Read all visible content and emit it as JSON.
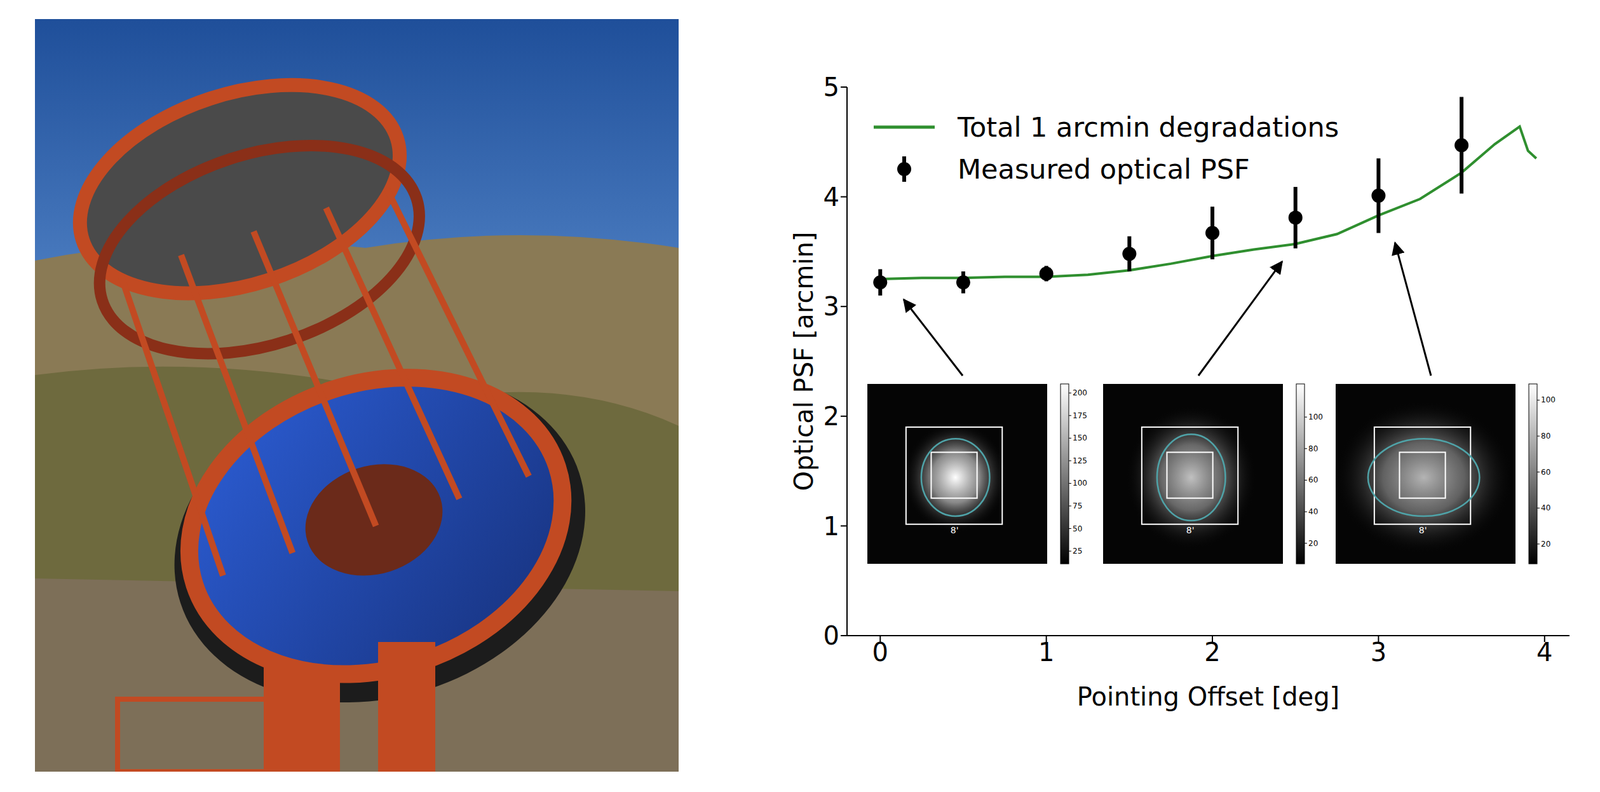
{
  "chart_data": {
    "type": "scatter",
    "x_label": "Pointing Offset [deg]",
    "y_label": "Optical PSF [arcmin]",
    "xlim": [
      -0.2,
      4.15
    ],
    "xticks": [
      0,
      1,
      2,
      3,
      4
    ],
    "ylim": [
      0,
      5
    ],
    "yticks": [
      0,
      1,
      2,
      3,
      4,
      5
    ],
    "grid": false,
    "legend": "upper left",
    "series": [
      {
        "name": "Total 1 arcmin degradations",
        "type": "line",
        "color": "#2f8f2f",
        "line_style": "solid",
        "x": [
          0,
          0.25,
          0.5,
          0.75,
          1,
          1.25,
          1.5,
          1.75,
          2,
          2.25,
          2.5,
          2.75,
          3,
          3.25,
          3.5,
          3.7,
          3.85,
          3.9,
          3.95
        ],
        "values": [
          3.25,
          3.26,
          3.26,
          3.27,
          3.27,
          3.29,
          3.33,
          3.39,
          3.46,
          3.52,
          3.57,
          3.66,
          3.83,
          3.98,
          4.22,
          4.48,
          4.64,
          4.42,
          4.35
        ]
      },
      {
        "name": "Measured optical PSF",
        "type": "scatter",
        "color": "#000000",
        "marker": "circle",
        "x": [
          0,
          0.5,
          1,
          1.5,
          2,
          2.5,
          3,
          3.5
        ],
        "values": [
          3.22,
          3.22,
          3.3,
          3.48,
          3.67,
          3.81,
          4.01,
          4.47
        ],
        "errors": [
          0.12,
          0.1,
          0.07,
          0.16,
          0.24,
          0.28,
          0.34,
          0.44
        ]
      }
    ],
    "insets": [
      {
        "pointing_offset": 0,
        "scale_label": "8'",
        "colorbar_range": [
          11,
          210
        ],
        "colorbar_ticks": [
          200,
          175,
          150,
          125,
          100,
          75,
          50,
          25
        ]
      },
      {
        "pointing_offset": 2.5,
        "scale_label": "8'",
        "colorbar_range": [
          7,
          121
        ],
        "colorbar_ticks": [
          100,
          80,
          60,
          40,
          20
        ]
      },
      {
        "pointing_offset": 3,
        "scale_label": "8'",
        "colorbar_range": [
          9,
          109
        ],
        "colorbar_ticks": [
          100,
          80,
          60,
          40,
          20
        ]
      }
    ]
  }
}
